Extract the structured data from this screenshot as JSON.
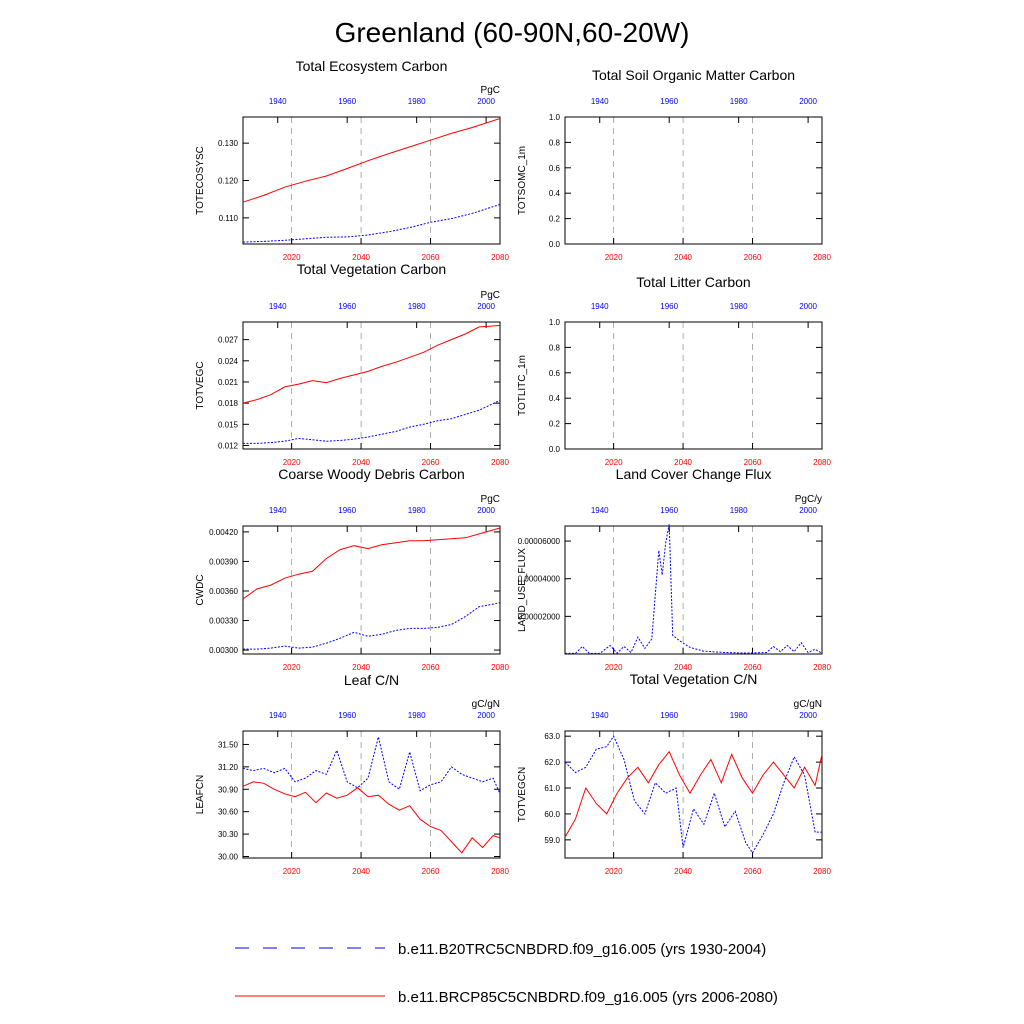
{
  "figure": {
    "title": "Greenland (60-90N,60-20W)",
    "legend": [
      {
        "label": "b.e11.B20TRC5CNBDRD.f09_g16.005 (yrs 1930-2004)",
        "color": "#0000ff",
        "style": "dashed"
      },
      {
        "label": "b.e11.BRCP85C5CNBDRD.f09_g16.005 (yrs 2006-2080)",
        "color": "#ff0000",
        "style": "solid"
      }
    ],
    "colors": {
      "historical": "#0000ff",
      "future": "#ff0000",
      "top_axis": "#0000ff",
      "bottom_axis": "#ff0000"
    }
  },
  "chart_data": [
    {
      "type": "line",
      "title": "Total Ecosystem Carbon",
      "ylabel": "TOTECOSYSC",
      "units": "PgC",
      "ylim": [
        0.103,
        0.137
      ],
      "yticks": [
        "0.110",
        "0.120",
        "0.130"
      ],
      "ytick_values": [
        0.11,
        0.12,
        0.13
      ],
      "xlim_bottom": [
        2006,
        2080
      ],
      "xticks_bottom": [
        "2020",
        "2040",
        "2060",
        "2080"
      ],
      "xticks_top": [
        "1940",
        "1960",
        "1980",
        "2000"
      ],
      "series": [
        {
          "x": [
            2006,
            2012,
            2018,
            2024,
            2030,
            2036,
            2042,
            2048,
            2054,
            2060,
            2066,
            2072,
            2080
          ],
          "y": [
            0.1142,
            0.116,
            0.1182,
            0.1198,
            0.1212,
            0.1232,
            0.1253,
            0.1272,
            0.129,
            0.1308,
            0.1326,
            0.1342,
            0.1366
          ]
        },
        {
          "x": [
            2006,
            2012,
            2018,
            2024,
            2030,
            2036,
            2042,
            2048,
            2054,
            2060,
            2066,
            2072,
            2080
          ],
          "y": [
            0.1035,
            0.1037,
            0.104,
            0.1044,
            0.1048,
            0.1049,
            0.1054,
            0.1063,
            0.1074,
            0.1088,
            0.1098,
            0.1112,
            0.1136
          ]
        }
      ]
    },
    {
      "type": "line",
      "title": "Total Soil Organic Matter Carbon",
      "ylabel": "TOTSOMC_1m",
      "units": "",
      "ylim": [
        0,
        1
      ],
      "yticks": [
        "0.0",
        "0.2",
        "0.4",
        "0.6",
        "0.8",
        "1.0"
      ],
      "ytick_values": [
        0,
        0.2,
        0.4,
        0.6,
        0.8,
        1.0
      ],
      "xlim_bottom": [
        2006,
        2080
      ],
      "xticks_bottom": [
        "2020",
        "2040",
        "2060",
        "2080"
      ],
      "xticks_top": [
        "1940",
        "1960",
        "1980",
        "2000"
      ],
      "series": []
    },
    {
      "type": "line",
      "title": "Total Vegetation Carbon",
      "ylabel": "TOTVEGC",
      "units": "PgC",
      "ylim": [
        0.0115,
        0.0295
      ],
      "yticks": [
        "0.012",
        "0.015",
        "0.018",
        "0.021",
        "0.024",
        "0.027"
      ],
      "ytick_values": [
        0.012,
        0.015,
        0.018,
        0.021,
        0.024,
        0.027
      ],
      "xlim_bottom": [
        2006,
        2080
      ],
      "xticks_bottom": [
        "2020",
        "2040",
        "2060",
        "2080"
      ],
      "xticks_top": [
        "1940",
        "1960",
        "1980",
        "2000"
      ],
      "series": [
        {
          "x": [
            2006,
            2010,
            2014,
            2018,
            2022,
            2026,
            2030,
            2034,
            2038,
            2042,
            2046,
            2050,
            2054,
            2058,
            2062,
            2066,
            2070,
            2074,
            2080
          ],
          "y": [
            0.018,
            0.0185,
            0.0192,
            0.0203,
            0.0207,
            0.0212,
            0.0209,
            0.0215,
            0.022,
            0.0225,
            0.0232,
            0.0238,
            0.0245,
            0.0252,
            0.0262,
            0.027,
            0.0278,
            0.0288,
            0.029
          ]
        },
        {
          "x": [
            2006,
            2010,
            2014,
            2018,
            2022,
            2026,
            2030,
            2034,
            2038,
            2042,
            2046,
            2050,
            2054,
            2058,
            2062,
            2066,
            2070,
            2074,
            2080
          ],
          "y": [
            0.0123,
            0.0123,
            0.0124,
            0.0126,
            0.013,
            0.0128,
            0.0126,
            0.0127,
            0.0129,
            0.0132,
            0.0136,
            0.014,
            0.0146,
            0.015,
            0.0155,
            0.0158,
            0.0164,
            0.017,
            0.0184
          ]
        }
      ]
    },
    {
      "type": "line",
      "title": "Total Litter Carbon",
      "ylabel": "TOTLITC_1m",
      "units": "",
      "ylim": [
        0,
        1
      ],
      "yticks": [
        "0.0",
        "0.2",
        "0.4",
        "0.6",
        "0.8",
        "1.0"
      ],
      "ytick_values": [
        0,
        0.2,
        0.4,
        0.6,
        0.8,
        1.0
      ],
      "xlim_bottom": [
        2006,
        2080
      ],
      "xticks_bottom": [
        "2020",
        "2040",
        "2060",
        "2080"
      ],
      "xticks_top": [
        "1940",
        "1960",
        "1980",
        "2000"
      ],
      "series": []
    },
    {
      "type": "line",
      "title": "Coarse Woody Debris Carbon",
      "ylabel": "CWDC",
      "units": "PgC",
      "ylim": [
        0.00296,
        0.00426
      ],
      "yticks": [
        "0.00300",
        "0.00330",
        "0.00360",
        "0.00390",
        "0.00420"
      ],
      "ytick_values": [
        0.003,
        0.0033,
        0.0036,
        0.0039,
        0.0042
      ],
      "xlim_bottom": [
        2006,
        2080
      ],
      "xticks_bottom": [
        "2020",
        "2040",
        "2060",
        "2080"
      ],
      "xticks_top": [
        "1940",
        "1960",
        "1980",
        "2000"
      ],
      "series": [
        {
          "x": [
            2006,
            2010,
            2014,
            2018,
            2022,
            2026,
            2030,
            2034,
            2038,
            2042,
            2046,
            2050,
            2054,
            2058,
            2062,
            2066,
            2070,
            2074,
            2080
          ],
          "y": [
            0.00352,
            0.00362,
            0.00366,
            0.00373,
            0.00377,
            0.0038,
            0.00393,
            0.00402,
            0.00406,
            0.00403,
            0.00407,
            0.00409,
            0.00411,
            0.00411,
            0.00412,
            0.00413,
            0.00414,
            0.00418,
            0.00424
          ]
        },
        {
          "x": [
            2006,
            2010,
            2014,
            2018,
            2022,
            2026,
            2030,
            2034,
            2038,
            2042,
            2046,
            2050,
            2054,
            2058,
            2062,
            2066,
            2070,
            2074,
            2080
          ],
          "y": [
            0.00301,
            0.00301,
            0.00302,
            0.00304,
            0.00302,
            0.00303,
            0.00307,
            0.00312,
            0.00318,
            0.00314,
            0.00316,
            0.0032,
            0.00322,
            0.00322,
            0.00323,
            0.00326,
            0.00334,
            0.00344,
            0.00348
          ]
        }
      ]
    },
    {
      "type": "line",
      "title": "Land Cover Change Flux",
      "ylabel": "LAND_USE_FLUX",
      "units": "PgC/y",
      "ylim": [
        0,
        6.8e-05
      ],
      "yticks": [
        "0.00002000",
        "0.00004000",
        "0.00006000"
      ],
      "ytick_values": [
        2e-05,
        4e-05,
        6e-05
      ],
      "xlim_bottom": [
        2006,
        2080
      ],
      "xticks_bottom": [
        "2020",
        "2040",
        "2060",
        "2080"
      ],
      "xticks_top": [
        "1940",
        "1960",
        "1980",
        "2000"
      ],
      "series": [
        {
          "x": [
            2006,
            2009,
            2011,
            2013,
            2016,
            2019,
            2021,
            2023,
            2025,
            2027,
            2029,
            2031,
            2033,
            2034,
            2035,
            2036,
            2037,
            2039,
            2042,
            2046,
            2052,
            2058,
            2064,
            2066,
            2068,
            2070,
            2072,
            2074,
            2076,
            2078,
            2080
          ],
          "y": [
            3e-07,
            3e-07,
            4e-06,
            3e-07,
            3e-07,
            4.5e-06,
            5e-07,
            4e-06,
            8e-07,
            9e-06,
            3e-06,
            8e-06,
            5.5e-05,
            4.2e-05,
            5.9e-05,
            6.9e-05,
            1e-05,
            7e-06,
            3.5e-06,
            1.5e-06,
            8e-07,
            5e-07,
            8e-07,
            4e-06,
            1.2e-06,
            4.5e-06,
            1.2e-06,
            6e-06,
            8e-07,
            2.5e-06,
            4e-07
          ]
        }
      ]
    },
    {
      "type": "line",
      "title": "Leaf C/N",
      "ylabel": "LEAFCN",
      "units": "gC/gN",
      "ylim": [
        29.98,
        31.68
      ],
      "yticks": [
        "30.00",
        "30.30",
        "30.60",
        "30.90",
        "31.20",
        "31.50"
      ],
      "ytick_values": [
        30.0,
        30.3,
        30.6,
        30.9,
        31.2,
        31.5
      ],
      "xlim_bottom": [
        2006,
        2080
      ],
      "xticks_bottom": [
        "2020",
        "2040",
        "2060",
        "2080"
      ],
      "xticks_top": [
        "1940",
        "1960",
        "1980",
        "2000"
      ],
      "series": [
        {
          "x": [
            2006,
            2009,
            2012,
            2015,
            2018,
            2021,
            2024,
            2027,
            2030,
            2033,
            2036,
            2039,
            2042,
            2045,
            2048,
            2051,
            2054,
            2057,
            2060,
            2063,
            2066,
            2069,
            2072,
            2075,
            2078,
            2080
          ],
          "y": [
            30.94,
            31.0,
            30.98,
            30.9,
            30.84,
            30.8,
            30.86,
            30.72,
            30.85,
            30.78,
            30.82,
            30.92,
            30.8,
            30.82,
            30.7,
            30.62,
            30.68,
            30.5,
            30.4,
            30.35,
            30.2,
            30.05,
            30.25,
            30.12,
            30.28,
            30.25
          ]
        },
        {
          "x": [
            2006,
            2009,
            2012,
            2015,
            2018,
            2021,
            2024,
            2027,
            2030,
            2033,
            2036,
            2039,
            2042,
            2045,
            2048,
            2051,
            2054,
            2057,
            2060,
            2063,
            2066,
            2069,
            2072,
            2075,
            2078,
            2080
          ],
          "y": [
            31.18,
            31.15,
            31.18,
            31.12,
            31.18,
            31.0,
            31.05,
            31.15,
            31.1,
            31.42,
            31.0,
            30.92,
            31.05,
            31.6,
            31.0,
            30.9,
            31.4,
            30.88,
            30.96,
            31.0,
            31.2,
            31.1,
            31.05,
            31.0,
            31.05,
            30.84
          ]
        }
      ]
    },
    {
      "type": "line",
      "title": "Total Vegetation C/N",
      "ylabel": "TOTVEGCN",
      "units": "gC/gN",
      "ylim": [
        58.3,
        63.2
      ],
      "yticks": [
        "59.0",
        "60.0",
        "61.0",
        "62.0",
        "63.0"
      ],
      "ytick_values": [
        59,
        60,
        61,
        62,
        63
      ],
      "xlim_bottom": [
        2006,
        2080
      ],
      "xticks_bottom": [
        "2020",
        "2040",
        "2060",
        "2080"
      ],
      "xticks_top": [
        "1940",
        "1960",
        "1980",
        "2000"
      ],
      "series": [
        {
          "x": [
            2006,
            2009,
            2012,
            2015,
            2018,
            2021,
            2024,
            2027,
            2030,
            2033,
            2036,
            2039,
            2042,
            2045,
            2048,
            2051,
            2054,
            2057,
            2060,
            2063,
            2066,
            2069,
            2072,
            2075,
            2078,
            2080
          ],
          "y": [
            59.1,
            59.8,
            61.0,
            60.4,
            60.0,
            60.8,
            61.4,
            61.8,
            61.2,
            61.9,
            62.4,
            61.5,
            60.8,
            61.5,
            62.1,
            61.2,
            62.3,
            61.4,
            60.8,
            61.5,
            62.0,
            61.5,
            61.0,
            61.8,
            61.1,
            62.3
          ]
        },
        {
          "x": [
            2006,
            2009,
            2012,
            2015,
            2018,
            2020,
            2023,
            2026,
            2029,
            2032,
            2035,
            2038,
            2040,
            2043,
            2046,
            2049,
            2052,
            2055,
            2058,
            2060,
            2063,
            2066,
            2069,
            2072,
            2075,
            2078,
            2080
          ],
          "y": [
            62.0,
            61.6,
            61.8,
            62.5,
            62.6,
            63.0,
            62.1,
            60.5,
            60.0,
            61.2,
            60.8,
            61.0,
            58.7,
            60.2,
            59.6,
            60.8,
            59.5,
            60.1,
            58.9,
            58.5,
            59.2,
            60.0,
            61.2,
            62.2,
            61.5,
            59.3,
            59.3
          ]
        }
      ]
    }
  ]
}
